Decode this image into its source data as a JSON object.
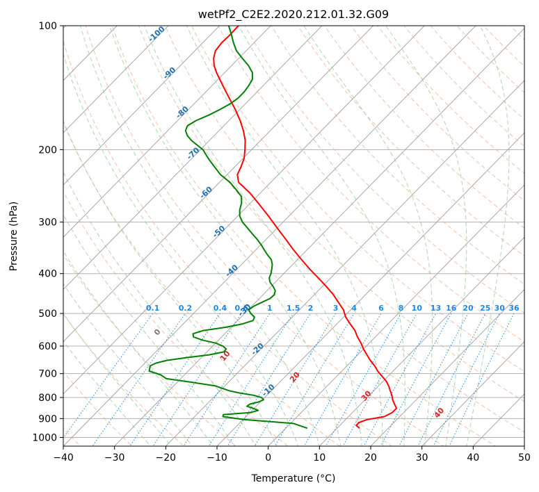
{
  "chart_data": {
    "type": "line",
    "subtype": "skew-t log-p diagram",
    "title": "wetPf2_C2E2.2020.212.01.32.G09",
    "xlabel": "Temperature (°C)",
    "ylabel": "Pressure (hPa)",
    "xlim": [
      -40,
      50
    ],
    "ylim": [
      1050,
      100
    ],
    "y_scale": "log",
    "grid": true,
    "x_ticks": [
      "−40",
      "−30",
      "−20",
      "−10",
      "0",
      "10",
      "20",
      "30",
      "40",
      "50"
    ],
    "x_tick_values": [
      -40,
      -30,
      -20,
      -10,
      0,
      10,
      20,
      30,
      40,
      50
    ],
    "y_ticks": [
      "100",
      "200",
      "300",
      "400",
      "500",
      "600",
      "700",
      "800",
      "900",
      "1000"
    ],
    "y_tick_values": [
      100,
      200,
      300,
      400,
      500,
      600,
      700,
      800,
      900,
      1000
    ],
    "series": [
      {
        "color": "#ff0000",
        "role": "temperature",
        "p": [
          950,
          935,
          920,
          905,
          890,
          870,
          850,
          830,
          810,
          790,
          770,
          750,
          730,
          710,
          690,
          670,
          650,
          630,
          610,
          590,
          570,
          550,
          530,
          510,
          490,
          470,
          450,
          430,
          410,
          390,
          370,
          350,
          330,
          310,
          290,
          270,
          255,
          240,
          230,
          220,
          210,
          200,
          190,
          180,
          170,
          160,
          150,
          140,
          130,
          125,
          120,
          115,
          110,
          105,
          100
        ],
        "t": [
          14.4,
          13.2,
          13.2,
          14.2,
          17.0,
          17.8,
          17.8,
          16.6,
          15.4,
          14.4,
          13.2,
          12.0,
          10.6,
          8.8,
          7.0,
          5.4,
          3.5,
          1.8,
          0.0,
          -1.6,
          -3.5,
          -5.2,
          -7.4,
          -9.6,
          -11.4,
          -13.8,
          -16.3,
          -19.2,
          -22.4,
          -25.8,
          -29.2,
          -32.7,
          -36.2,
          -40.0,
          -44.0,
          -48.4,
          -52.0,
          -56.3,
          -58.0,
          -58.8,
          -59.8,
          -61.3,
          -63.0,
          -65.2,
          -67.8,
          -70.8,
          -74.2,
          -77.8,
          -81.6,
          -83.4,
          -84.9,
          -86.0,
          -86.3,
          -86.2,
          -86.3
        ]
      },
      {
        "color": "#008000",
        "role": "dewpoint",
        "p": [
          950,
          925,
          905,
          890,
          880,
          870,
          860,
          850,
          840,
          830,
          820,
          810,
          800,
          790,
          780,
          770,
          760,
          750,
          735,
          720,
          705,
          690,
          680,
          670,
          660,
          650,
          640,
          630,
          620,
          610,
          600,
          590,
          580,
          570,
          560,
          550,
          540,
          530,
          520,
          510,
          500,
          490,
          480,
          470,
          460,
          450,
          440,
          430,
          420,
          410,
          400,
          390,
          380,
          370,
          360,
          350,
          340,
          330,
          320,
          310,
          300,
          290,
          280,
          270,
          260,
          250,
          240,
          230,
          220,
          210,
          200,
          195,
          190,
          185,
          180,
          175,
          170,
          165,
          160,
          155,
          150,
          145,
          140,
          135,
          130,
          125,
          120,
          115,
          110,
          105,
          100
        ],
        "td": [
          4.2,
          0.6,
          -9.8,
          -14.5,
          -14.8,
          -9.8,
          -8.8,
          -10.2,
          -11.8,
          -11.6,
          -10.3,
          -9.8,
          -10.6,
          -12.6,
          -15.8,
          -18.3,
          -20.0,
          -21.8,
          -27.0,
          -32.8,
          -34.6,
          -37.6,
          -38.0,
          -38.4,
          -37.8,
          -36.2,
          -32.9,
          -29.0,
          -26.7,
          -26.8,
          -28.0,
          -30.0,
          -33.2,
          -35.5,
          -36.2,
          -34.8,
          -31.0,
          -28.4,
          -27.0,
          -27.4,
          -28.8,
          -29.9,
          -29.6,
          -28.8,
          -27.9,
          -27.8,
          -28.4,
          -29.6,
          -31.0,
          -32.0,
          -32.5,
          -33.2,
          -34.0,
          -35.1,
          -36.8,
          -38.4,
          -40.0,
          -41.8,
          -43.8,
          -45.8,
          -47.9,
          -49.6,
          -50.8,
          -51.7,
          -53.0,
          -55.4,
          -58.0,
          -61.3,
          -64.0,
          -66.8,
          -69.5,
          -71.5,
          -73.5,
          -75.2,
          -76.5,
          -77.1,
          -76.4,
          -75.0,
          -73.9,
          -73.0,
          -72.5,
          -72.5,
          -72.8,
          -73.3,
          -74.6,
          -76.7,
          -79.3,
          -81.9,
          -84.0,
          -86.0,
          -88.2
        ]
      }
    ],
    "isotherm_labels": [
      "-100",
      "-90",
      "-80",
      "-70",
      "-60",
      "-50",
      "-40",
      "-30",
      "-20",
      "-10"
    ],
    "mixing_ratio_labels": [
      "0.1",
      "0.2",
      "0.4",
      "0.6",
      "1",
      "1.5",
      "2",
      "3",
      "4",
      "6",
      "8",
      "10",
      "13",
      "16",
      "20",
      "25",
      "30",
      "36"
    ],
    "dry_adiabat_labels": [
      "0",
      "10",
      "20",
      "30",
      "40"
    ],
    "colors": {
      "temperature": "#ff0000",
      "dewpoint": "#008000",
      "isotherm_label": "#1f6fb2",
      "mixing_ratio": "#1e88e5",
      "dry_adiabat": "#f4a582",
      "moist_adiabat": "#99cc99",
      "dry_adiabat_label": "#d62728"
    }
  }
}
